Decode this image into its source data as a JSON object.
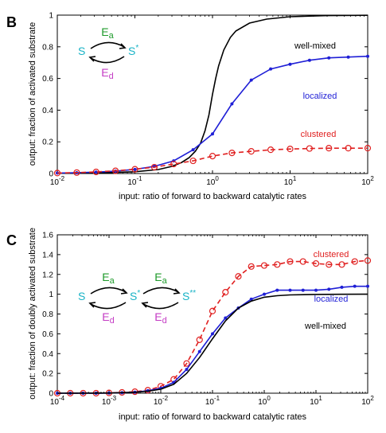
{
  "chart_data": [
    {
      "type": "line",
      "panel_label": "B",
      "xlabel": "input: ratio of forward to backward catalytic rates",
      "ylabel": "output: fraction of activated substrate",
      "xscale": "log",
      "xlim": [
        0.01,
        100
      ],
      "ylim": [
        0,
        1
      ],
      "xticks": [
        0.01,
        0.1,
        1,
        10,
        100
      ],
      "yticks": [
        0,
        0.2,
        0.4,
        0.6,
        0.8,
        1
      ],
      "ytick_labels": [
        "0",
        "0.2",
        "0.4",
        "0.6",
        "0.8",
        "1"
      ],
      "grid": false,
      "series": [
        {
          "name": "well-mixed",
          "color": "#000000",
          "style": "solid",
          "marker": "none",
          "x": [
            0.01,
            0.0316,
            0.1,
            0.2,
            0.3,
            0.4,
            0.5,
            0.6,
            0.7,
            0.8,
            0.9,
            1.0,
            1.1,
            1.2,
            1.4,
            1.7,
            2,
            3,
            5,
            10,
            30,
            100
          ],
          "y": [
            0.002,
            0.004,
            0.011,
            0.025,
            0.045,
            0.07,
            0.1,
            0.14,
            0.19,
            0.27,
            0.37,
            0.5,
            0.6,
            0.68,
            0.78,
            0.86,
            0.9,
            0.95,
            0.975,
            0.99,
            0.997,
            0.999
          ]
        },
        {
          "name": "localized",
          "color": "#1f1fd6",
          "style": "solid",
          "marker": "dot",
          "x": [
            0.01,
            0.0178,
            0.0316,
            0.0562,
            0.1,
            0.178,
            0.316,
            0.562,
            1.0,
            1.78,
            3.16,
            5.62,
            10,
            17.8,
            31.6,
            56.2,
            100
          ],
          "y": [
            0.003,
            0.005,
            0.009,
            0.015,
            0.026,
            0.045,
            0.08,
            0.15,
            0.25,
            0.44,
            0.59,
            0.66,
            0.69,
            0.715,
            0.73,
            0.735,
            0.74
          ]
        },
        {
          "name": "clustered",
          "color": "#e02020",
          "style": "dashed",
          "marker": "circle",
          "x": [
            0.01,
            0.0178,
            0.0316,
            0.0562,
            0.1,
            0.178,
            0.316,
            0.562,
            1.0,
            1.78,
            3.16,
            5.62,
            10,
            17.8,
            31.6,
            56.2,
            100
          ],
          "y": [
            0.003,
            0.006,
            0.01,
            0.017,
            0.027,
            0.04,
            0.06,
            0.08,
            0.11,
            0.13,
            0.14,
            0.15,
            0.155,
            0.158,
            0.16,
            0.16,
            0.16
          ]
        }
      ],
      "scheme": {
        "s": "S",
        "s_star": "S*",
        "e_a": "Ea",
        "e_d": "Ed"
      }
    },
    {
      "type": "line",
      "panel_label": "C",
      "xlabel": "input: ratio of forward to backward catalytic rates",
      "ylabel": "output: fraction of doubly activated substrate",
      "xscale": "log",
      "xlim": [
        0.0001,
        100
      ],
      "ylim": [
        0,
        1.6
      ],
      "xticks": [
        0.0001,
        0.001,
        0.01,
        0.1,
        1,
        10,
        100
      ],
      "yticks": [
        0,
        0.2,
        0.4,
        0.6,
        0.8,
        1,
        1.2,
        1.4,
        1.6
      ],
      "ytick_labels": [
        "0",
        "0.2",
        "0.4",
        "0.6",
        "0.8",
        "1",
        "1.2",
        "1.4",
        "1.6"
      ],
      "grid": false,
      "series": [
        {
          "name": "clustered",
          "color": "#e02020",
          "style": "dashed",
          "marker": "circle",
          "x": [
            0.0001,
            0.000178,
            0.000316,
            0.000562,
            0.001,
            0.00178,
            0.00316,
            0.00562,
            0.01,
            0.0178,
            0.0316,
            0.0562,
            0.1,
            0.178,
            0.316,
            0.562,
            1.0,
            1.78,
            3.16,
            5.62,
            10,
            17.8,
            31.6,
            56.2,
            100
          ],
          "y": [
            0,
            0,
            0,
            0,
            0.003,
            0.008,
            0.015,
            0.03,
            0.07,
            0.14,
            0.3,
            0.54,
            0.83,
            1.02,
            1.18,
            1.28,
            1.29,
            1.3,
            1.33,
            1.33,
            1.31,
            1.3,
            1.3,
            1.33,
            1.34
          ]
        },
        {
          "name": "localized",
          "color": "#1f1fd6",
          "style": "solid",
          "marker": "dot",
          "x": [
            0.0001,
            0.000178,
            0.000316,
            0.000562,
            0.001,
            0.00178,
            0.00316,
            0.00562,
            0.01,
            0.0178,
            0.0316,
            0.0562,
            0.1,
            0.178,
            0.316,
            0.562,
            1.0,
            1.78,
            3.16,
            5.62,
            10,
            17.8,
            31.6,
            56.2,
            100
          ],
          "y": [
            0,
            0,
            0,
            0,
            0.002,
            0.005,
            0.01,
            0.025,
            0.05,
            0.11,
            0.24,
            0.42,
            0.6,
            0.76,
            0.86,
            0.95,
            1.0,
            1.04,
            1.04,
            1.04,
            1.04,
            1.05,
            1.07,
            1.08,
            1.08
          ]
        },
        {
          "name": "well-mixed",
          "color": "#000000",
          "style": "solid",
          "marker": "none",
          "x": [
            0.0001,
            0.000316,
            0.001,
            0.00316,
            0.00562,
            0.01,
            0.0178,
            0.0316,
            0.0562,
            0.1,
            0.178,
            0.316,
            0.562,
            1.0,
            1.78,
            3.16,
            10,
            31.6,
            100
          ],
          "y": [
            0,
            0.001,
            0.002,
            0.01,
            0.02,
            0.04,
            0.09,
            0.2,
            0.36,
            0.55,
            0.73,
            0.86,
            0.93,
            0.97,
            0.985,
            0.993,
            0.998,
            0.999,
            1.0
          ]
        }
      ],
      "scheme": {
        "s": "S",
        "s_star": "S*",
        "s_dstar": "S**",
        "e_a1": "Ea",
        "e_d1": "Ed",
        "e_a2": "Ea",
        "e_d2": "Ed"
      }
    }
  ],
  "colors": {
    "substrate": "#19b3c6",
    "kinase": "#1d9a2a",
    "phosphatase": "#c43cc4"
  }
}
